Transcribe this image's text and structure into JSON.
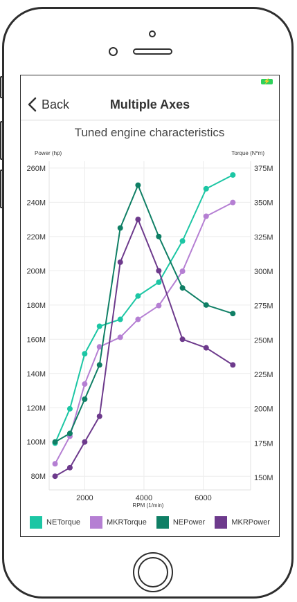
{
  "nav": {
    "back_label": "Back",
    "title": "Multiple Axes"
  },
  "colors": {
    "ne_torque": "#1cc6a4",
    "mkr_torque": "#b57fd3",
    "ne_power": "#0f7f65",
    "mkr_power": "#6d3a8c",
    "battery": "#2fd15b"
  },
  "chart_data": {
    "type": "line",
    "title": "Tuned engine characteristics",
    "xlabel": "RPM (1/min)",
    "xlim": [
      800,
      7600
    ],
    "xticks": [
      2000,
      4000,
      6000
    ],
    "y_left": {
      "label": "Power (hp)",
      "ylim": [
        72,
        264
      ],
      "ticks": [
        80,
        100,
        120,
        140,
        160,
        180,
        200,
        220,
        240,
        260
      ],
      "tick_labels": [
        "80M",
        "100M",
        "120M",
        "140M",
        "160M",
        "180M",
        "200M",
        "220M",
        "240M",
        "260M"
      ]
    },
    "y_right": {
      "label": "Torque (N*m)",
      "ylim": [
        141,
        380
      ],
      "ticks": [
        150,
        175,
        200,
        225,
        250,
        275,
        300,
        325,
        350,
        375
      ],
      "tick_labels": [
        "150M",
        "175M",
        "200M",
        "225M",
        "250M",
        "275M",
        "300M",
        "325M",
        "350M",
        "375M"
      ]
    },
    "grid": true,
    "legend_position": "bottom",
    "series": [
      {
        "name": "NETorque",
        "axis": "right",
        "color": "#1cc6a4",
        "x": [
          1000,
          1500,
          2000,
          2500,
          3200,
          3800,
          4500,
          5300,
          6100,
          7000
        ],
        "values": [
          175,
          200,
          240,
          260,
          265,
          282,
          292,
          322,
          360,
          370
        ]
      },
      {
        "name": "MKRTorque",
        "axis": "right",
        "color": "#b57fd3",
        "x": [
          1000,
          1500,
          2000,
          2500,
          3200,
          3800,
          4500,
          5300,
          6100,
          7000
        ],
        "values": [
          160,
          180,
          218,
          245,
          252,
          265,
          275,
          300,
          340,
          350
        ]
      },
      {
        "name": "NEPower",
        "axis": "left",
        "color": "#0f7f65",
        "x": [
          1000,
          1500,
          2000,
          2500,
          3200,
          3800,
          4500,
          5300,
          6100,
          7000
        ],
        "values": [
          100,
          105,
          125,
          145,
          225,
          250,
          220,
          190,
          180,
          175
        ]
      },
      {
        "name": "MKRPower",
        "axis": "left",
        "color": "#6d3a8c",
        "x": [
          1000,
          1500,
          2000,
          2500,
          3200,
          3800,
          4500,
          5300,
          6100,
          7000
        ],
        "values": [
          80,
          85,
          100,
          115,
          205,
          230,
          200,
          160,
          155,
          145
        ]
      }
    ]
  }
}
